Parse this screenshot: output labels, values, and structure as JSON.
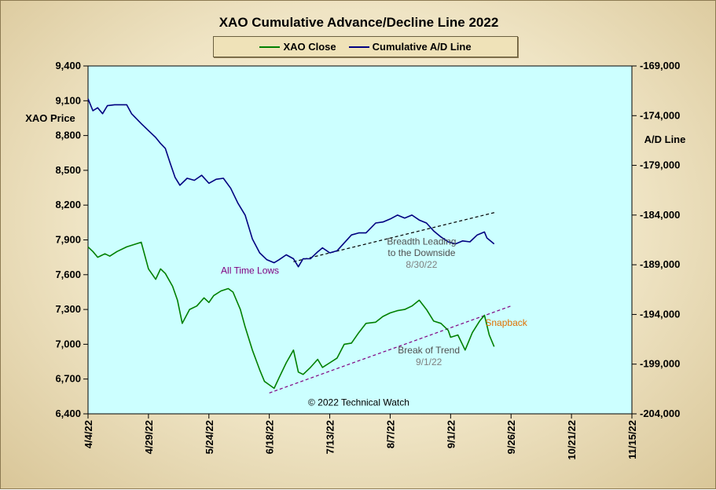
{
  "chart_data": {
    "type": "line",
    "title": "XAO Cumulative Advance/Decline Line 2022",
    "ylabel": "XAO Price",
    "y2label": "A/D Line",
    "ylim": [
      6400,
      9400
    ],
    "y2lim": [
      -204000,
      -169000
    ],
    "yticks": [
      "9,400",
      "9,100",
      "8,800",
      "8,500",
      "8,200",
      "7,900",
      "7,600",
      "7,300",
      "7,000",
      "6,700",
      "6,400"
    ],
    "y2ticks": [
      "-169,000",
      "-174,000",
      "-179,000",
      "-184,000",
      "-189,000",
      "-194,000",
      "-199,000",
      "-204,000"
    ],
    "xlim": [
      "4/4/22",
      "11/15/22"
    ],
    "xticks": [
      "4/4/22",
      "4/29/22",
      "5/24/22",
      "6/18/22",
      "7/13/22",
      "8/7/22",
      "9/1/22",
      "9/26/22",
      "10/21/22",
      "11/15/22"
    ],
    "grid": false,
    "legend_position": "top-center",
    "background": "#ccffff",
    "series": [
      {
        "name": "XAO Close",
        "axis": "left",
        "color": "#008000",
        "points": [
          [
            "4/4/22",
            7840
          ],
          [
            "4/6/22",
            7800
          ],
          [
            "4/8/22",
            7750
          ],
          [
            "4/11/22",
            7780
          ],
          [
            "4/13/22",
            7760
          ],
          [
            "4/16/22",
            7800
          ],
          [
            "4/20/22",
            7840
          ],
          [
            "4/26/22",
            7880
          ],
          [
            "4/29/22",
            7650
          ],
          [
            "5/2/22",
            7560
          ],
          [
            "5/4/22",
            7650
          ],
          [
            "5/6/22",
            7610
          ],
          [
            "5/9/22",
            7500
          ],
          [
            "5/11/22",
            7380
          ],
          [
            "5/13/22",
            7180
          ],
          [
            "5/16/22",
            7300
          ],
          [
            "5/19/22",
            7330
          ],
          [
            "5/22/22",
            7400
          ],
          [
            "5/24/22",
            7360
          ],
          [
            "5/26/22",
            7420
          ],
          [
            "5/29/22",
            7460
          ],
          [
            "6/1/22",
            7480
          ],
          [
            "6/3/22",
            7450
          ],
          [
            "6/6/22",
            7300
          ],
          [
            "6/8/22",
            7150
          ],
          [
            "6/11/22",
            6950
          ],
          [
            "6/14/22",
            6780
          ],
          [
            "6/16/22",
            6680
          ],
          [
            "6/18/22",
            6650
          ],
          [
            "6/20/22",
            6620
          ],
          [
            "6/22/22",
            6710
          ],
          [
            "6/25/22",
            6840
          ],
          [
            "6/28/22",
            6950
          ],
          [
            "6/30/22",
            6760
          ],
          [
            "7/2/22",
            6740
          ],
          [
            "7/5/22",
            6800
          ],
          [
            "7/8/22",
            6870
          ],
          [
            "7/10/22",
            6800
          ],
          [
            "7/13/22",
            6840
          ],
          [
            "7/16/22",
            6880
          ],
          [
            "7/19/22",
            7000
          ],
          [
            "7/22/22",
            7010
          ],
          [
            "7/25/22",
            7100
          ],
          [
            "7/28/22",
            7180
          ],
          [
            "8/1/22",
            7190
          ],
          [
            "8/4/22",
            7240
          ],
          [
            "8/7/22",
            7270
          ],
          [
            "8/10/22",
            7290
          ],
          [
            "8/13/22",
            7300
          ],
          [
            "8/16/22",
            7330
          ],
          [
            "8/19/22",
            7380
          ],
          [
            "8/22/22",
            7300
          ],
          [
            "8/25/22",
            7200
          ],
          [
            "8/28/22",
            7180
          ],
          [
            "8/31/22",
            7120
          ],
          [
            "9/1/22",
            7060
          ],
          [
            "9/4/22",
            7080
          ],
          [
            "9/7/22",
            6950
          ],
          [
            "9/10/22",
            7100
          ],
          [
            "9/13/22",
            7200
          ],
          [
            "9/15/22",
            7250
          ],
          [
            "9/17/22",
            7080
          ],
          [
            "9/19/22",
            6980
          ]
        ]
      },
      {
        "name": "Cumulative A/D Line",
        "axis": "right",
        "color": "#000080",
        "points": [
          [
            "4/4/22",
            -172300
          ],
          [
            "4/6/22",
            -173500
          ],
          [
            "4/8/22",
            -173200
          ],
          [
            "4/10/22",
            -173800
          ],
          [
            "4/12/22",
            -173000
          ],
          [
            "4/15/22",
            -172900
          ],
          [
            "4/20/22",
            -172900
          ],
          [
            "4/22/22",
            -173800
          ],
          [
            "4/26/22",
            -174800
          ],
          [
            "4/29/22",
            -175500
          ],
          [
            "5/2/22",
            -176200
          ],
          [
            "5/4/22",
            -176800
          ],
          [
            "5/6/22",
            -177300
          ],
          [
            "5/8/22",
            -178800
          ],
          [
            "5/10/22",
            -180200
          ],
          [
            "5/12/22",
            -181000
          ],
          [
            "5/15/22",
            -180300
          ],
          [
            "5/18/22",
            -180500
          ],
          [
            "5/21/22",
            -180000
          ],
          [
            "5/24/22",
            -180800
          ],
          [
            "5/27/22",
            -180400
          ],
          [
            "5/30/22",
            -180300
          ],
          [
            "6/2/22",
            -181300
          ],
          [
            "6/5/22",
            -182800
          ],
          [
            "6/8/22",
            -184000
          ],
          [
            "6/11/22",
            -186400
          ],
          [
            "6/14/22",
            -187800
          ],
          [
            "6/17/22",
            -188500
          ],
          [
            "6/20/22",
            -188800
          ],
          [
            "6/22/22",
            -188500
          ],
          [
            "6/25/22",
            -188000
          ],
          [
            "6/28/22",
            -188400
          ],
          [
            "6/30/22",
            -189200
          ],
          [
            "7/2/22",
            -188400
          ],
          [
            "7/5/22",
            -188400
          ],
          [
            "7/8/22",
            -187700
          ],
          [
            "7/10/22",
            -187300
          ],
          [
            "7/13/22",
            -187800
          ],
          [
            "7/16/22",
            -187600
          ],
          [
            "7/19/22",
            -186800
          ],
          [
            "7/22/22",
            -186000
          ],
          [
            "7/25/22",
            -185800
          ],
          [
            "7/28/22",
            -185800
          ],
          [
            "8/1/22",
            -184800
          ],
          [
            "8/4/22",
            -184700
          ],
          [
            "8/7/22",
            -184400
          ],
          [
            "8/10/22",
            -184000
          ],
          [
            "8/13/22",
            -184300
          ],
          [
            "8/16/22",
            -184000
          ],
          [
            "8/19/22",
            -184500
          ],
          [
            "8/22/22",
            -184800
          ],
          [
            "8/25/22",
            -185600
          ],
          [
            "8/28/22",
            -186200
          ],
          [
            "8/31/22",
            -186700
          ],
          [
            "9/3/22",
            -186900
          ],
          [
            "9/6/22",
            -186600
          ],
          [
            "9/9/22",
            -186700
          ],
          [
            "9/12/22",
            -186000
          ],
          [
            "9/15/22",
            -185700
          ],
          [
            "9/16/22",
            -186300
          ],
          [
            "9/19/22",
            -186900
          ]
        ]
      }
    ],
    "trendlines": [
      {
        "axis": "right",
        "from": [
          "6/28/22",
          -188700
        ],
        "to": [
          "9/20/22",
          -183700
        ],
        "color": "#000000",
        "dashed": true
      },
      {
        "axis": "left",
        "from": [
          "6/18/22",
          6580
        ],
        "to": [
          "9/26/22",
          7330
        ],
        "color": "#800080",
        "dashed": true
      }
    ],
    "annotations": [
      {
        "text": "All Time Lows",
        "color": "#800080",
        "x": "6/10/22",
        "y": 7610
      },
      {
        "text": "Breadth Leading",
        "color": "#505050",
        "x": "8/20/22",
        "y": 7860
      },
      {
        "text": "to the Downside",
        "color": "#505050",
        "x": "8/20/22",
        "y": 7760
      },
      {
        "text": "8/30/22",
        "color": "#808080",
        "x": "8/20/22",
        "y": 7660
      },
      {
        "text": "Snapback",
        "color": "#e07000",
        "x": "9/24/22",
        "y": 7160
      },
      {
        "text": "Break of Trend",
        "color": "#505050",
        "x": "8/23/22",
        "y": 6920
      },
      {
        "text": "9/1/22",
        "color": "#808080",
        "x": "8/23/22",
        "y": 6820
      },
      {
        "text": "© 2022 Technical Watch",
        "color": "#000000",
        "x": "7/25/22",
        "y": 6470
      }
    ]
  }
}
